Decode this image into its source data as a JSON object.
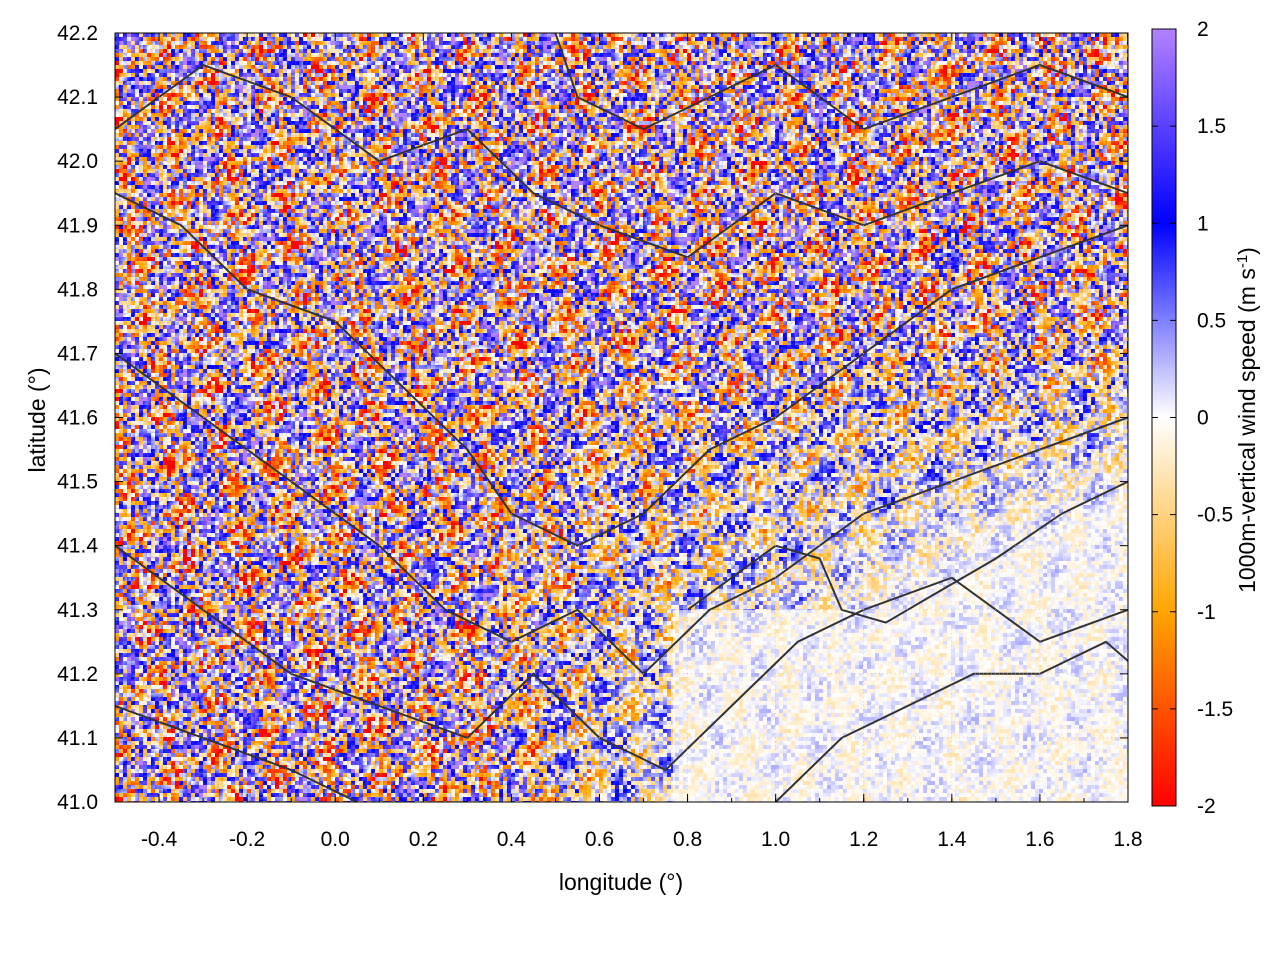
{
  "chart_data": {
    "type": "heatmap",
    "title": "",
    "xlabel": "longitude (°)",
    "ylabel": "latitude (°)",
    "xlim": [
      -0.5,
      1.8
    ],
    "ylim": [
      41.0,
      42.2
    ],
    "x_ticks": [
      "-0.4",
      "-0.2",
      "0.0",
      "0.2",
      "0.4",
      "0.6",
      "0.8",
      "1.0",
      "1.2",
      "1.4",
      "1.6",
      "1.8"
    ],
    "x_tick_values": [
      -0.4,
      -0.2,
      0.0,
      0.2,
      0.4,
      0.6,
      0.8,
      1.0,
      1.2,
      1.4,
      1.6,
      1.8
    ],
    "y_ticks": [
      "41.0",
      "41.1",
      "41.2",
      "41.3",
      "41.4",
      "41.5",
      "41.6",
      "41.7",
      "41.8",
      "41.9",
      "42.0",
      "42.1",
      "42.2"
    ],
    "y_tick_values": [
      41.0,
      41.1,
      41.2,
      41.3,
      41.4,
      41.5,
      41.6,
      41.7,
      41.8,
      41.9,
      42.0,
      42.1,
      42.2
    ],
    "colorbar": {
      "label": "1000m-vertical wind speed (m s",
      "label_superscript": "-1",
      "label_suffix": ")",
      "range": [
        -2,
        2
      ],
      "ticks": [
        "2",
        "1.5",
        "1",
        "0.5",
        "0",
        "-0.5",
        "-1",
        "-1.5",
        "-2"
      ],
      "tick_values": [
        2,
        1.5,
        1,
        0.5,
        0,
        -0.5,
        -1,
        -1.5,
        -2
      ],
      "palette": [
        {
          "value": -2,
          "color": "#ff0000"
        },
        {
          "value": -1,
          "color": "#ffa500"
        },
        {
          "value": 0,
          "color": "#ffffff"
        },
        {
          "value": 1,
          "color": "#0000ff"
        },
        {
          "value": 2,
          "color": "#b482ff"
        }
      ]
    },
    "grid": true,
    "contours": "terrain elevation isolines (dark grey)",
    "contour_color": "#333333"
  }
}
